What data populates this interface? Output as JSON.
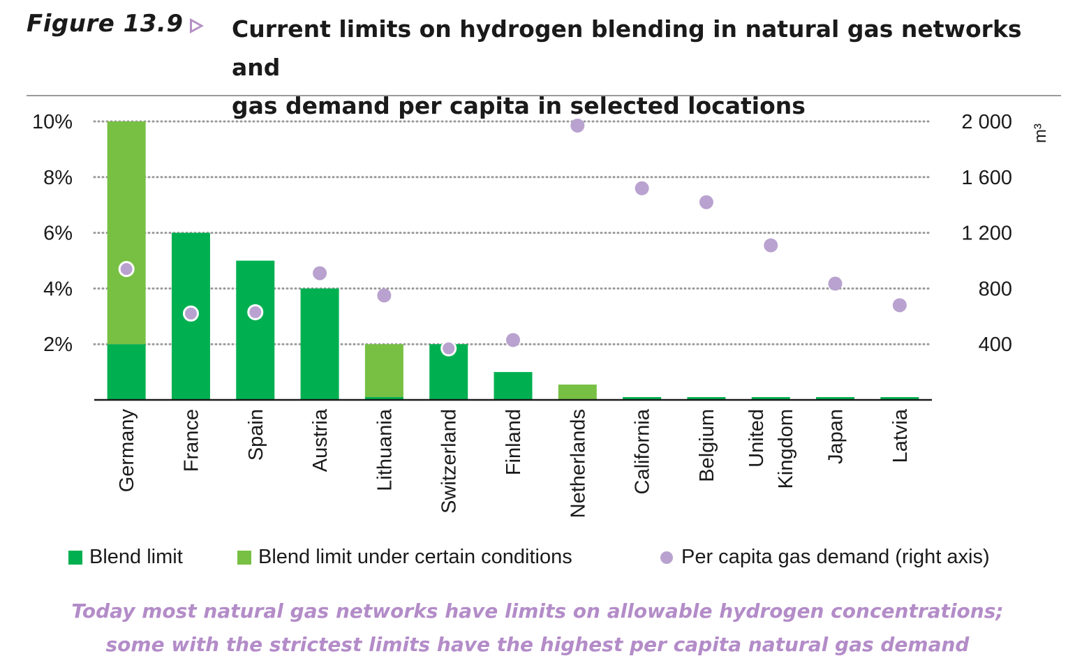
{
  "figure": {
    "label": "Figure 13.9",
    "title_line1": "Current limits on hydrogen blending in natural gas networks and",
    "title_line2": "gas demand per capita in selected locations"
  },
  "caption": {
    "line1": "Today most natural gas networks have limits on allowable hydrogen concentrations;",
    "line2": "some with the strictest limits have the highest per capita natural gas demand"
  },
  "colors": {
    "blend_limit": "#00b050",
    "blend_conditional": "#77c043",
    "demand": "#b9a2cf"
  },
  "chart_data": {
    "type": "bar",
    "categories": [
      "Germany",
      "France",
      "Spain",
      "Austria",
      "Lithuania",
      "Switzerland",
      "Finland",
      "Netherlands",
      "California",
      "Belgium",
      "United Kingdom",
      "Japan",
      "Latvia"
    ],
    "category_label_lines": [
      [
        "Germany"
      ],
      [
        "France"
      ],
      [
        "Spain"
      ],
      [
        "Austria"
      ],
      [
        "Lithuania"
      ],
      [
        "Switzerland"
      ],
      [
        "Finland"
      ],
      [
        "Netherlands"
      ],
      [
        "California"
      ],
      [
        "Belgium"
      ],
      [
        "United",
        "Kingdom"
      ],
      [
        "Japan"
      ],
      [
        "Latvia"
      ]
    ],
    "series": [
      {
        "name": "Blend limit",
        "kind": "stacked-bar",
        "values": [
          2,
          6,
          5,
          4,
          0.1,
          2,
          1,
          0,
          0.1,
          0.1,
          0.1,
          0.1,
          0.1
        ]
      },
      {
        "name": "Blend limit under certain conditions",
        "kind": "stacked-bar",
        "values": [
          8,
          0,
          0,
          0,
          1.9,
          0,
          0,
          0.55,
          0,
          0,
          0,
          0,
          0
        ]
      },
      {
        "name": "Per capita gas demand (right axis)",
        "kind": "scatter",
        "axis": "right",
        "values": [
          940,
          620,
          630,
          910,
          750,
          370,
          430,
          1970,
          1520,
          1420,
          1110,
          835,
          680
        ]
      }
    ],
    "left_axis": {
      "ylim": [
        0,
        10
      ],
      "ticks": [
        2,
        4,
        6,
        8,
        10
      ],
      "tick_labels": [
        "2%",
        "4%",
        "6%",
        "8%",
        "10%"
      ]
    },
    "right_axis": {
      "ylim": [
        0,
        2000
      ],
      "ticks": [
        400,
        800,
        1200,
        1600,
        2000
      ],
      "tick_labels": [
        "400",
        "800",
        "1 200",
        "1 600",
        "2 000"
      ],
      "unit": "m³"
    },
    "grid": "dotted horizontal",
    "legend_position": "bottom"
  }
}
